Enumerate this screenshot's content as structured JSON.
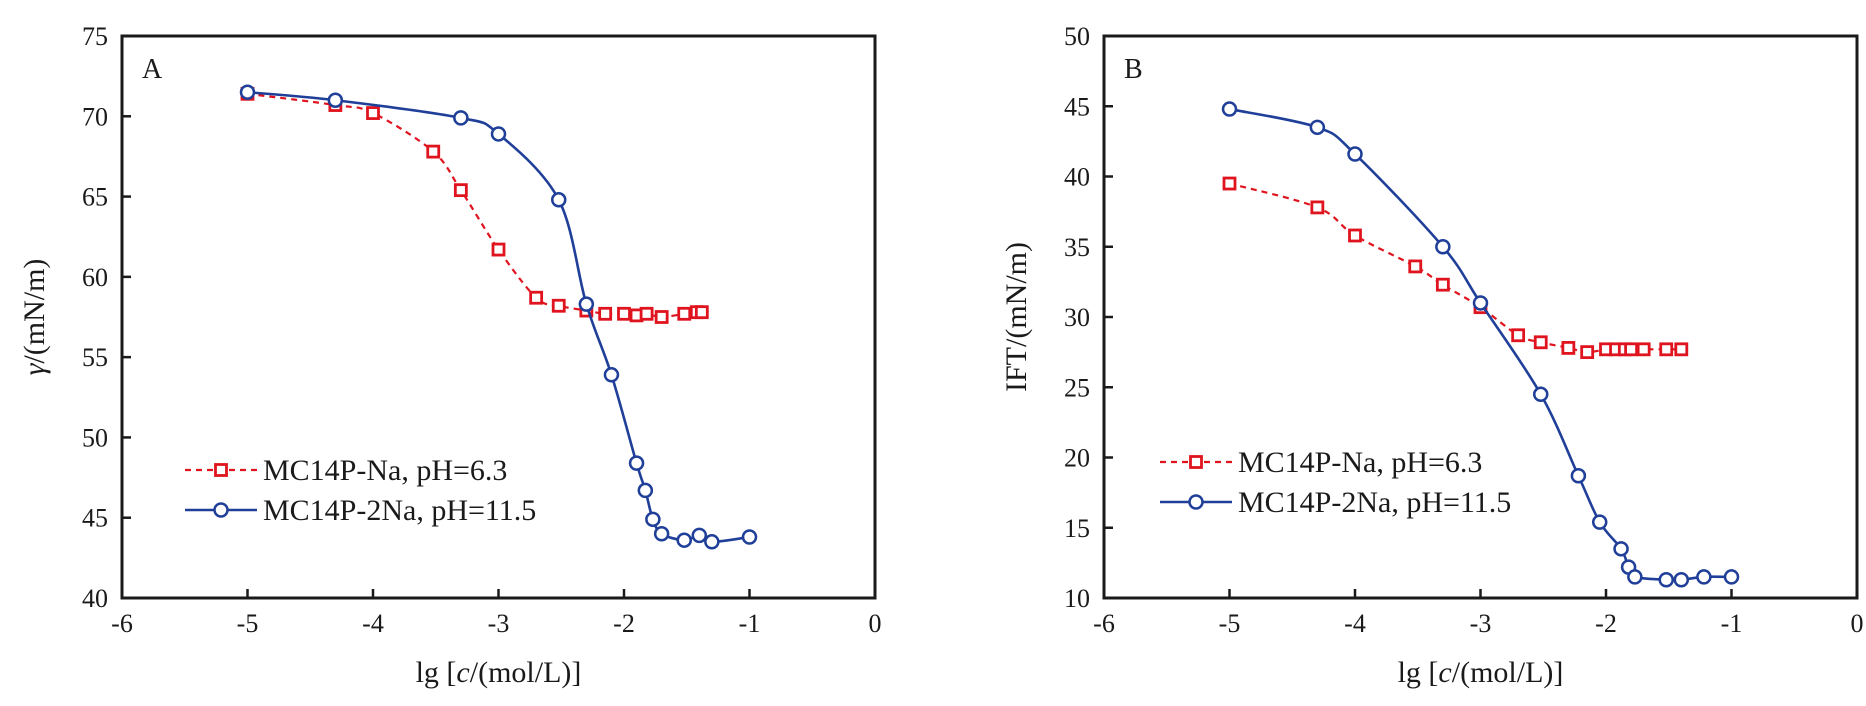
{
  "chart_data": [
    {
      "type": "line",
      "panel_label": "A",
      "xlabel_pre": "lg [",
      "xlabel_var": "c",
      "xlabel_post": "/(mol/L)]",
      "ylabel_var": "γ",
      "ylabel_post": "/(mN/m)",
      "xlim": [
        -6,
        0
      ],
      "ylim": [
        40,
        75
      ],
      "xticks": [
        -6,
        -5,
        -4,
        -3,
        -2,
        -1,
        0
      ],
      "yticks": [
        40,
        45,
        50,
        55,
        60,
        65,
        70,
        75
      ],
      "legend_position": "lower-left",
      "series": [
        {
          "name": "MC14P-Na, pH=6.3",
          "color": "#e0141e",
          "marker": "square",
          "line": "dashed",
          "x": [
            -5.0,
            -4.3,
            -4.0,
            -3.52,
            -3.3,
            -3.0,
            -2.7,
            -2.52,
            -2.3,
            -2.15,
            -2.0,
            -1.9,
            -1.82,
            -1.7,
            -1.52,
            -1.42,
            -1.38
          ],
          "y": [
            71.4,
            70.7,
            70.2,
            67.8,
            65.4,
            61.7,
            58.7,
            58.2,
            57.9,
            57.7,
            57.7,
            57.6,
            57.7,
            57.5,
            57.7,
            57.8,
            57.8
          ]
        },
        {
          "name": "MC14P-2Na, pH=11.5",
          "color": "#1f3f99",
          "marker": "circle",
          "line": "solid",
          "x": [
            -5.0,
            -4.3,
            -3.3,
            -3.0,
            -2.52,
            -2.3,
            -2.1,
            -1.9,
            -1.83,
            -1.77,
            -1.7,
            -1.52,
            -1.4,
            -1.3,
            -1.0
          ],
          "y": [
            71.5,
            71.0,
            69.9,
            68.9,
            64.8,
            58.3,
            53.9,
            48.4,
            46.7,
            44.9,
            44.0,
            43.6,
            43.9,
            43.5,
            43.8
          ]
        }
      ]
    },
    {
      "type": "line",
      "panel_label": "B",
      "xlabel_pre": "lg [",
      "xlabel_var": "c",
      "xlabel_post": "/(mol/L)]",
      "ylabel_var": "",
      "ylabel_post": "IFT/(mN/m)",
      "xlim": [
        -6,
        0
      ],
      "ylim": [
        10,
        50
      ],
      "xticks": [
        -6,
        -5,
        -4,
        -3,
        -2,
        -1,
        0
      ],
      "yticks": [
        10,
        15,
        20,
        25,
        30,
        35,
        40,
        45,
        50
      ],
      "legend_position": "lower-left",
      "series": [
        {
          "name": "MC14P-Na, pH=6.3",
          "color": "#e0141e",
          "marker": "square",
          "line": "dashed",
          "x": [
            -5.0,
            -4.3,
            -4.0,
            -3.52,
            -3.3,
            -3.0,
            -2.7,
            -2.52,
            -2.3,
            -2.15,
            -2.0,
            -1.92,
            -1.85,
            -1.8,
            -1.7,
            -1.52,
            -1.4
          ],
          "y": [
            39.5,
            37.8,
            35.8,
            33.6,
            32.3,
            30.7,
            28.7,
            28.2,
            27.8,
            27.5,
            27.7,
            27.7,
            27.7,
            27.7,
            27.7,
            27.7,
            27.7
          ]
        },
        {
          "name": "MC14P-2Na, pH=11.5",
          "color": "#1f3f99",
          "marker": "circle",
          "line": "solid",
          "x": [
            -5.0,
            -4.3,
            -4.0,
            -3.3,
            -3.0,
            -2.52,
            -2.22,
            -2.05,
            -1.88,
            -1.82,
            -1.77,
            -1.52,
            -1.4,
            -1.22,
            -1.0
          ],
          "y": [
            44.8,
            43.5,
            41.6,
            35.0,
            31.0,
            24.5,
            18.7,
            15.4,
            13.5,
            12.2,
            11.5,
            11.3,
            11.3,
            11.5,
            11.5
          ]
        }
      ]
    }
  ]
}
